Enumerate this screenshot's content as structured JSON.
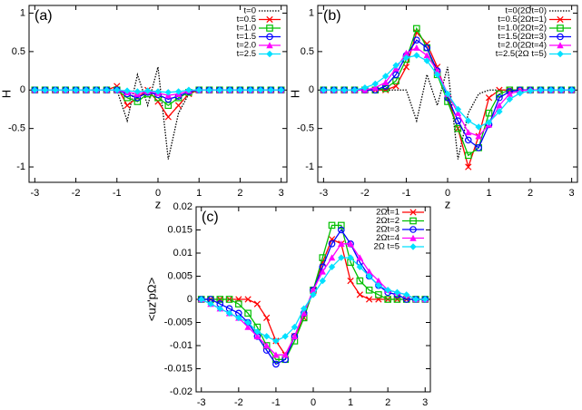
{
  "chart_data": [
    {
      "type": "line",
      "label": "(a)",
      "xlabel": "z",
      "ylabel": "H",
      "xlim": [
        -3.14,
        3.14
      ],
      "ylim": [
        -1.2,
        1.1
      ],
      "xticks": [
        -3,
        -2,
        -1,
        0,
        1,
        2,
        3
      ],
      "yticks": [
        -1,
        -0.5,
        0,
        0.5,
        1
      ],
      "grid": false,
      "legend": "top-right",
      "x": [
        -3,
        -2.75,
        -2.5,
        -2.25,
        -2,
        -1.75,
        -1.5,
        -1.25,
        -1,
        -0.75,
        -0.5,
        -0.25,
        0,
        0.25,
        0.5,
        0.75,
        1,
        1.25,
        1.5,
        1.75,
        2,
        2.25,
        2.5,
        2.75,
        3
      ],
      "series": [
        {
          "name": "t=0",
          "color": "#000000",
          "style": "dotted",
          "values": [
            0,
            0,
            0,
            0,
            0,
            0,
            0,
            0,
            0,
            -0.4,
            0.2,
            -0.2,
            0.3,
            -0.9,
            -0.3,
            -0.05,
            0,
            0,
            0,
            0,
            0,
            0,
            0,
            0,
            0
          ]
        },
        {
          "name": "t=0.5",
          "color": "#ff0000",
          "marker": "cross",
          "values": [
            0,
            0,
            0,
            0,
            0,
            0,
            0,
            0,
            0.05,
            -0.2,
            -0.1,
            0,
            -0.15,
            -0.35,
            -0.2,
            -0.05,
            0,
            0,
            0,
            0,
            0,
            0,
            0,
            0,
            0
          ]
        },
        {
          "name": "t=1.0",
          "color": "#00c000",
          "marker": "square",
          "values": [
            0,
            0,
            0,
            0,
            0,
            0,
            0,
            0,
            0,
            -0.1,
            -0.15,
            -0.05,
            -0.1,
            -0.2,
            -0.1,
            -0.03,
            0,
            0,
            0,
            0,
            0,
            0,
            0,
            0,
            0
          ]
        },
        {
          "name": "t=1.5",
          "color": "#0000ff",
          "marker": "circle",
          "values": [
            0,
            0,
            0,
            0,
            0,
            0,
            0,
            0,
            0,
            -0.05,
            -0.1,
            -0.03,
            -0.06,
            -0.12,
            -0.08,
            -0.02,
            0,
            0,
            0,
            0,
            0,
            0,
            0,
            0,
            0
          ]
        },
        {
          "name": "t=2.0",
          "color": "#ff00ff",
          "marker": "triangle",
          "values": [
            0,
            0,
            0,
            0,
            0,
            0,
            0,
            0,
            0,
            -0.03,
            -0.05,
            -0.02,
            -0.04,
            -0.07,
            -0.05,
            -0.01,
            0,
            0,
            0,
            0,
            0,
            0,
            0,
            0,
            0
          ]
        },
        {
          "name": "t=2.5",
          "color": "#00e0ff",
          "marker": "diamond",
          "values": [
            0,
            0,
            0,
            0,
            0,
            0,
            0,
            0,
            0,
            -0.01,
            -0.02,
            -0.01,
            -0.02,
            -0.03,
            -0.02,
            0,
            0,
            0,
            0,
            0,
            0,
            0,
            0,
            0,
            0
          ]
        }
      ]
    },
    {
      "type": "line",
      "label": "(b)",
      "xlabel": "z",
      "ylabel": "H",
      "xlim": [
        -3.14,
        3.14
      ],
      "ylim": [
        -1.2,
        1.1
      ],
      "xticks": [
        -3,
        -2,
        -1,
        0,
        1,
        2,
        3
      ],
      "yticks": [
        -1,
        -0.5,
        0,
        0.5,
        1
      ],
      "grid": false,
      "legend": "top-right",
      "x": [
        -3,
        -2.75,
        -2.5,
        -2.25,
        -2,
        -1.75,
        -1.5,
        -1.25,
        -1,
        -0.75,
        -0.5,
        -0.25,
        0,
        0.25,
        0.5,
        0.75,
        1,
        1.25,
        1.5,
        1.75,
        2,
        2.25,
        2.5,
        2.75,
        3
      ],
      "series": [
        {
          "name": "t=0(2Ωt=0)",
          "color": "#000000",
          "style": "dotted",
          "values": [
            0,
            0,
            0,
            0,
            0,
            0,
            0,
            0,
            0,
            -0.4,
            0.2,
            -0.2,
            0.3,
            -0.9,
            -0.3,
            -0.05,
            0,
            0,
            0,
            0,
            0,
            0,
            0,
            0,
            0
          ]
        },
        {
          "name": "t=0.5(2Ωt=1)",
          "color": "#ff0000",
          "marker": "cross",
          "values": [
            0,
            0,
            0,
            0,
            0,
            0,
            0,
            0.05,
            0.3,
            0.75,
            0.6,
            0.3,
            -0.1,
            -0.5,
            -1.0,
            -0.6,
            -0.1,
            0,
            0,
            0,
            0,
            0,
            0,
            0,
            0
          ]
        },
        {
          "name": "t=1.0(2Ωt=2)",
          "color": "#00c000",
          "marker": "square",
          "values": [
            0,
            0,
            0,
            0,
            0,
            0,
            0.02,
            0.12,
            0.4,
            0.8,
            0.55,
            0.2,
            -0.15,
            -0.5,
            -0.85,
            -0.75,
            -0.3,
            -0.05,
            0,
            0,
            0,
            0,
            0,
            0,
            0
          ]
        },
        {
          "name": "t=1.5(2Ωt=3)",
          "color": "#0000ff",
          "marker": "circle",
          "values": [
            0,
            0,
            0,
            0,
            0,
            0,
            0.05,
            0.2,
            0.45,
            0.65,
            0.55,
            0.25,
            -0.1,
            -0.4,
            -0.65,
            -0.75,
            -0.45,
            -0.1,
            -0.02,
            0,
            0,
            0,
            0,
            0,
            0
          ]
        },
        {
          "name": "t=2.0(2Ωt=4)",
          "color": "#ff00ff",
          "marker": "triangle",
          "values": [
            0,
            0,
            0,
            0,
            0,
            0.03,
            0.1,
            0.28,
            0.48,
            0.55,
            0.45,
            0.25,
            -0.05,
            -0.3,
            -0.55,
            -0.6,
            -0.45,
            -0.2,
            -0.05,
            -0.01,
            0,
            0,
            0,
            0,
            0
          ]
        },
        {
          "name": "t=2.5(2Ω t=5)",
          "color": "#00e0ff",
          "marker": "diamond",
          "values": [
            0,
            0,
            0,
            0,
            0.03,
            0.08,
            0.18,
            0.32,
            0.42,
            0.45,
            0.38,
            0.2,
            -0.05,
            -0.25,
            -0.4,
            -0.48,
            -0.42,
            -0.28,
            -0.12,
            -0.04,
            -0.01,
            0,
            0,
            0,
            0
          ]
        }
      ]
    },
    {
      "type": "line",
      "label": "(c)",
      "xlabel": "z",
      "ylabel": "<uz'pΩ>",
      "xlim": [
        -3.14,
        3.14
      ],
      "ylim": [
        -0.02,
        0.02
      ],
      "xticks": [
        -3,
        -2,
        -1,
        0,
        1,
        2,
        3
      ],
      "yticks": [
        -0.02,
        -0.015,
        -0.01,
        -0.005,
        0,
        0.005,
        0.01,
        0.015,
        0.02
      ],
      "grid": false,
      "legend": "top-right",
      "x": [
        -3,
        -2.75,
        -2.5,
        -2.25,
        -2,
        -1.75,
        -1.5,
        -1.25,
        -1,
        -0.75,
        -0.5,
        -0.25,
        0,
        0.25,
        0.5,
        0.75,
        1,
        1.25,
        1.5,
        1.75,
        2,
        2.25,
        2.5,
        2.75,
        3
      ],
      "series": [
        {
          "name": "2Ωt=1",
          "color": "#ff0000",
          "marker": "cross",
          "values": [
            0,
            0,
            0,
            0,
            0,
            0,
            -0.001,
            -0.004,
            -0.009,
            -0.012,
            -0.008,
            -0.004,
            0.002,
            0.008,
            0.013,
            0.012,
            0.004,
            0.001,
            0,
            0,
            0,
            0,
            0,
            0,
            0
          ]
        },
        {
          "name": "2Ωt=2",
          "color": "#00c000",
          "marker": "square",
          "values": [
            0,
            0,
            0,
            0,
            -0.001,
            -0.003,
            -0.006,
            -0.01,
            -0.013,
            -0.013,
            -0.009,
            -0.004,
            0.002,
            0.009,
            0.016,
            0.016,
            0.008,
            0.004,
            0.002,
            0.001,
            0,
            0,
            0,
            0,
            0
          ]
        },
        {
          "name": "2Ωt=3",
          "color": "#0000ff",
          "marker": "circle",
          "values": [
            0,
            0,
            -0.001,
            -0.002,
            -0.003,
            -0.005,
            -0.008,
            -0.011,
            -0.014,
            -0.013,
            -0.008,
            -0.003,
            0.002,
            0.007,
            0.012,
            0.015,
            0.012,
            0.008,
            0.005,
            0.003,
            0.0015,
            0.001,
            0,
            0,
            0
          ]
        },
        {
          "name": "2Ωt=4",
          "color": "#ff00ff",
          "marker": "triangle",
          "values": [
            0,
            -0.001,
            -0.002,
            -0.003,
            -0.004,
            -0.006,
            -0.008,
            -0.01,
            -0.012,
            -0.012,
            -0.008,
            -0.003,
            0.002,
            0.006,
            0.009,
            0.012,
            0.012,
            0.009,
            0.006,
            0.004,
            0.002,
            0.0015,
            0.001,
            0,
            0
          ]
        },
        {
          "name": "2Ω t=5",
          "color": "#00e0ff",
          "marker": "diamond",
          "values": [
            0,
            -0.001,
            -0.002,
            -0.003,
            -0.004,
            -0.005,
            -0.007,
            -0.008,
            -0.009,
            -0.008,
            -0.006,
            -0.002,
            0.001,
            0.004,
            0.007,
            0.009,
            0.009,
            0.007,
            0.005,
            0.003,
            0.002,
            0.0015,
            0.001,
            0,
            0
          ]
        }
      ]
    }
  ]
}
